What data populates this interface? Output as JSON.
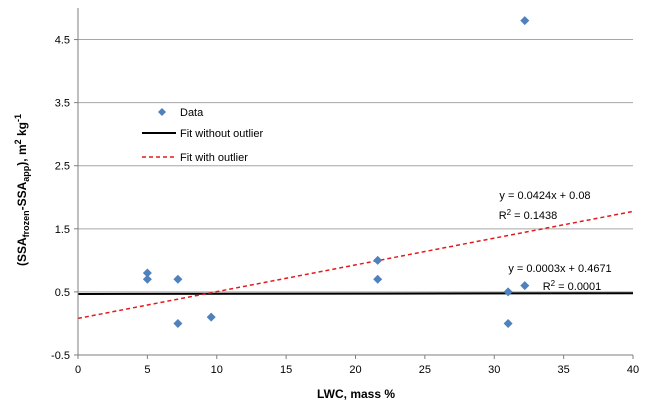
{
  "chart_data": {
    "type": "scatter",
    "title": "",
    "xlabel": "LWC, mass %",
    "ylabel": {
      "open": "(SSA",
      "sub1": "frozen",
      "sep": "-SSA",
      "sub2": "app",
      "close": "), m",
      "sup1": "2",
      "kg": " kg",
      "sup2": "-1"
    },
    "xlim": [
      0,
      40
    ],
    "ylim": [
      -0.5,
      5.0
    ],
    "xticks": [
      0,
      5,
      10,
      15,
      20,
      25,
      30,
      35,
      40
    ],
    "xtick_labels": [
      "0",
      "5",
      "10",
      "15",
      "20",
      "25",
      "30",
      "35",
      "40"
    ],
    "yticks": [
      -0.5,
      0.5,
      1.5,
      2.5,
      3.5,
      4.5
    ],
    "ytick_labels": [
      "-0.5",
      "0.5",
      "1.5",
      "2.5",
      "3.5",
      "4.5"
    ],
    "grid": "horizontal",
    "legend_position": "upper-left",
    "series": [
      {
        "name": "Data",
        "kind": "scatter",
        "marker": "diamond",
        "color": "#4F81BD",
        "points": [
          [
            5,
            0.8
          ],
          [
            5,
            0.7
          ],
          [
            7.2,
            0.7
          ],
          [
            7.2,
            0.0
          ],
          [
            9.6,
            0.1
          ],
          [
            21.6,
            1.0
          ],
          [
            21.6,
            0.7
          ],
          [
            31,
            0.5
          ],
          [
            31,
            0.0
          ],
          [
            32.2,
            0.6
          ],
          [
            32.2,
            4.8
          ]
        ]
      },
      {
        "name": "Fit without outlier",
        "kind": "line",
        "style": "solid",
        "color": "#000000",
        "slope": 0.0003,
        "intercept": 0.4671
      },
      {
        "name": "Fit with outlier",
        "kind": "line",
        "style": "dashed",
        "color": "#E31A1C",
        "slope": 0.0424,
        "intercept": 0.08
      }
    ],
    "annotations": {
      "with_outlier_eq": "y = 0.0424x + 0.08",
      "with_outlier_r2_lead": "R",
      "with_outlier_r2_sup": "2",
      "with_outlier_r2_val": " = 0.1438",
      "without_outlier_eq": "y = 0.0003x + 0.4671",
      "without_outlier_r2_lead": "R",
      "without_outlier_r2_sup": "2",
      "without_outlier_r2_val": " = 0.0001"
    }
  }
}
